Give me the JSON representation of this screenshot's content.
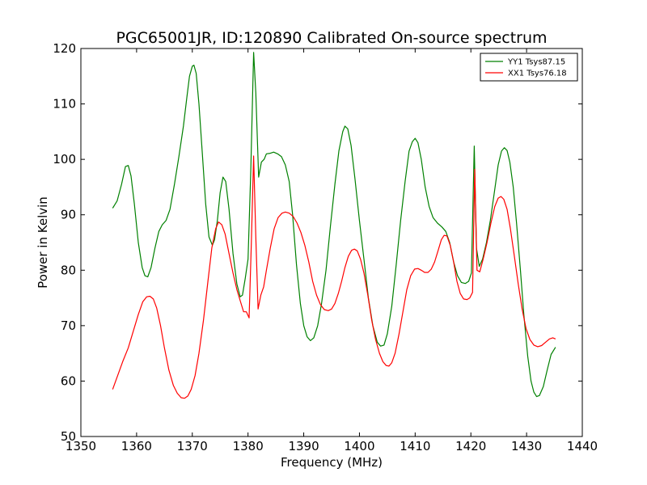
{
  "chart_data": {
    "type": "line",
    "title": "PGC65001JR, ID:120890 Calibrated On-source spectrum",
    "xlabel": "Frequency (MHz)",
    "ylabel": "Power in Kelvin",
    "xlim": [
      1350,
      1440
    ],
    "ylim": [
      50,
      120
    ],
    "xticks": [
      1350,
      1360,
      1370,
      1380,
      1390,
      1400,
      1410,
      1420,
      1430,
      1440
    ],
    "yticks": [
      50,
      60,
      70,
      80,
      90,
      100,
      110,
      120
    ],
    "grid": false,
    "legend_position": "top-right",
    "series": [
      {
        "name": "YY1 Tsys87.15",
        "color": "#008000",
        "points": [
          [
            1355.7,
            91.2
          ],
          [
            1356.5,
            92.5
          ],
          [
            1357.3,
            95.5
          ],
          [
            1358.0,
            98.7
          ],
          [
            1358.5,
            98.9
          ],
          [
            1359.0,
            97.0
          ],
          [
            1359.6,
            92.0
          ],
          [
            1360.3,
            85.0
          ],
          [
            1361.0,
            80.5
          ],
          [
            1361.5,
            79.0
          ],
          [
            1362.0,
            78.8
          ],
          [
            1362.6,
            80.5
          ],
          [
            1363.3,
            84.0
          ],
          [
            1364.0,
            87.0
          ],
          [
            1364.6,
            88.2
          ],
          [
            1365.3,
            89.0
          ],
          [
            1366.0,
            91.0
          ],
          [
            1366.8,
            95.5
          ],
          [
            1367.6,
            100.5
          ],
          [
            1368.4,
            106.0
          ],
          [
            1369.0,
            111.0
          ],
          [
            1369.5,
            115.0
          ],
          [
            1370.0,
            116.8
          ],
          [
            1370.3,
            117.0
          ],
          [
            1370.7,
            115.5
          ],
          [
            1371.2,
            110.0
          ],
          [
            1371.8,
            101.0
          ],
          [
            1372.4,
            92.0
          ],
          [
            1373.0,
            86.0
          ],
          [
            1373.6,
            84.5
          ],
          [
            1374.0,
            85.5
          ],
          [
            1374.5,
            89.0
          ],
          [
            1375.0,
            94.0
          ],
          [
            1375.5,
            96.8
          ],
          [
            1376.0,
            96.0
          ],
          [
            1376.6,
            91.0
          ],
          [
            1377.3,
            83.0
          ],
          [
            1378.0,
            77.5
          ],
          [
            1378.6,
            75.2
          ],
          [
            1379.0,
            75.5
          ],
          [
            1379.5,
            78.5
          ],
          [
            1380.0,
            82.0
          ],
          [
            1380.5,
            98.0
          ],
          [
            1381.0,
            119.3
          ],
          [
            1381.4,
            112.0
          ],
          [
            1381.9,
            96.8
          ],
          [
            1382.4,
            99.5
          ],
          [
            1382.9,
            100.0
          ],
          [
            1383.3,
            101.0
          ],
          [
            1384.0,
            101.1
          ],
          [
            1384.6,
            101.3
          ],
          [
            1385.3,
            101.0
          ],
          [
            1386.0,
            100.5
          ],
          [
            1386.7,
            99.0
          ],
          [
            1387.4,
            96.0
          ],
          [
            1388.0,
            90.0
          ],
          [
            1388.7,
            81.0
          ],
          [
            1389.4,
            74.0
          ],
          [
            1390.0,
            70.0
          ],
          [
            1390.6,
            68.0
          ],
          [
            1391.2,
            67.3
          ],
          [
            1391.8,
            67.8
          ],
          [
            1392.5,
            70.0
          ],
          [
            1393.2,
            74.0
          ],
          [
            1394.0,
            80.0
          ],
          [
            1394.8,
            88.0
          ],
          [
            1395.6,
            95.5
          ],
          [
            1396.3,
            101.5
          ],
          [
            1397.0,
            105.0
          ],
          [
            1397.4,
            106.0
          ],
          [
            1397.9,
            105.5
          ],
          [
            1398.5,
            102.5
          ],
          [
            1399.2,
            96.5
          ],
          [
            1400.0,
            89.0
          ],
          [
            1400.8,
            82.0
          ],
          [
            1401.6,
            75.0
          ],
          [
            1402.4,
            70.0
          ],
          [
            1403.2,
            67.0
          ],
          [
            1403.8,
            66.3
          ],
          [
            1404.4,
            66.5
          ],
          [
            1405.0,
            68.5
          ],
          [
            1405.8,
            73.5
          ],
          [
            1406.6,
            81.0
          ],
          [
            1407.4,
            89.0
          ],
          [
            1408.2,
            96.0
          ],
          [
            1408.9,
            101.5
          ],
          [
            1409.5,
            103.2
          ],
          [
            1410.0,
            103.8
          ],
          [
            1410.5,
            103.0
          ],
          [
            1411.1,
            100.0
          ],
          [
            1411.8,
            95.0
          ],
          [
            1412.5,
            91.5
          ],
          [
            1413.2,
            89.5
          ],
          [
            1414.0,
            88.5
          ],
          [
            1414.8,
            87.8
          ],
          [
            1415.5,
            87.0
          ],
          [
            1416.2,
            85.0
          ],
          [
            1416.9,
            81.5
          ],
          [
            1417.6,
            79.0
          ],
          [
            1418.3,
            77.8
          ],
          [
            1419.0,
            77.6
          ],
          [
            1419.6,
            78.0
          ],
          [
            1420.1,
            79.5
          ],
          [
            1420.6,
            102.4
          ],
          [
            1421.0,
            84.0
          ],
          [
            1421.5,
            80.7
          ],
          [
            1422.1,
            82.0
          ],
          [
            1422.8,
            85.0
          ],
          [
            1423.5,
            89.0
          ],
          [
            1424.2,
            94.0
          ],
          [
            1424.9,
            99.0
          ],
          [
            1425.5,
            101.5
          ],
          [
            1426.0,
            102.1
          ],
          [
            1426.5,
            101.6
          ],
          [
            1427.0,
            99.5
          ],
          [
            1427.6,
            95.0
          ],
          [
            1428.2,
            88.5
          ],
          [
            1428.9,
            80.0
          ],
          [
            1429.5,
            72.0
          ],
          [
            1430.2,
            64.5
          ],
          [
            1430.8,
            60.0
          ],
          [
            1431.3,
            58.0
          ],
          [
            1431.8,
            57.2
          ],
          [
            1432.3,
            57.4
          ],
          [
            1433.0,
            59.0
          ],
          [
            1433.7,
            62.0
          ],
          [
            1434.4,
            64.8
          ],
          [
            1435.2,
            66.1
          ]
        ]
      },
      {
        "name": "XX1 Tsys76.18",
        "color": "#ff0000",
        "points": [
          [
            1355.7,
            58.5
          ],
          [
            1356.6,
            61.0
          ],
          [
            1357.5,
            63.5
          ],
          [
            1358.5,
            66.0
          ],
          [
            1359.4,
            69.0
          ],
          [
            1360.3,
            72.0
          ],
          [
            1361.1,
            74.3
          ],
          [
            1361.8,
            75.2
          ],
          [
            1362.4,
            75.3
          ],
          [
            1363.0,
            74.8
          ],
          [
            1363.6,
            73.2
          ],
          [
            1364.3,
            70.0
          ],
          [
            1365.0,
            66.0
          ],
          [
            1365.8,
            62.0
          ],
          [
            1366.6,
            59.2
          ],
          [
            1367.3,
            57.8
          ],
          [
            1368.0,
            57.0
          ],
          [
            1368.6,
            56.9
          ],
          [
            1369.2,
            57.3
          ],
          [
            1369.8,
            58.5
          ],
          [
            1370.5,
            61.0
          ],
          [
            1371.2,
            65.0
          ],
          [
            1372.0,
            71.0
          ],
          [
            1372.8,
            78.0
          ],
          [
            1373.5,
            84.0
          ],
          [
            1374.2,
            87.5
          ],
          [
            1374.7,
            88.7
          ],
          [
            1375.3,
            88.2
          ],
          [
            1375.9,
            86.5
          ],
          [
            1376.6,
            83.0
          ],
          [
            1377.3,
            79.5
          ],
          [
            1378.0,
            76.5
          ],
          [
            1378.6,
            74.5
          ],
          [
            1379.2,
            72.5
          ],
          [
            1379.7,
            72.5
          ],
          [
            1380.2,
            71.4
          ],
          [
            1380.6,
            85.0
          ],
          [
            1381.0,
            100.6
          ],
          [
            1381.4,
            86.0
          ],
          [
            1381.8,
            73.0
          ],
          [
            1382.3,
            75.5
          ],
          [
            1382.8,
            77.0
          ],
          [
            1383.3,
            80.0
          ],
          [
            1384.0,
            84.0
          ],
          [
            1384.7,
            87.5
          ],
          [
            1385.4,
            89.5
          ],
          [
            1386.1,
            90.3
          ],
          [
            1386.7,
            90.5
          ],
          [
            1387.4,
            90.3
          ],
          [
            1388.1,
            89.7
          ],
          [
            1388.8,
            88.5
          ],
          [
            1389.5,
            86.8
          ],
          [
            1390.2,
            84.5
          ],
          [
            1390.9,
            81.5
          ],
          [
            1391.6,
            78.0
          ],
          [
            1392.3,
            75.5
          ],
          [
            1393.0,
            73.8
          ],
          [
            1393.7,
            72.9
          ],
          [
            1394.4,
            72.7
          ],
          [
            1395.0,
            73.0
          ],
          [
            1395.6,
            74.0
          ],
          [
            1396.2,
            75.8
          ],
          [
            1396.8,
            78.0
          ],
          [
            1397.4,
            80.5
          ],
          [
            1398.0,
            82.5
          ],
          [
            1398.6,
            83.6
          ],
          [
            1399.1,
            83.8
          ],
          [
            1399.6,
            83.5
          ],
          [
            1400.2,
            82.0
          ],
          [
            1400.8,
            79.5
          ],
          [
            1401.5,
            75.5
          ],
          [
            1402.2,
            71.0
          ],
          [
            1402.9,
            67.5
          ],
          [
            1403.6,
            65.0
          ],
          [
            1404.2,
            63.5
          ],
          [
            1404.8,
            62.8
          ],
          [
            1405.3,
            62.7
          ],
          [
            1405.8,
            63.3
          ],
          [
            1406.4,
            65.0
          ],
          [
            1407.1,
            68.5
          ],
          [
            1407.8,
            72.5
          ],
          [
            1408.5,
            76.5
          ],
          [
            1409.2,
            79.0
          ],
          [
            1409.9,
            80.2
          ],
          [
            1410.5,
            80.3
          ],
          [
            1411.1,
            80.0
          ],
          [
            1411.7,
            79.6
          ],
          [
            1412.3,
            79.6
          ],
          [
            1412.9,
            80.2
          ],
          [
            1413.5,
            81.5
          ],
          [
            1414.1,
            83.5
          ],
          [
            1414.7,
            85.5
          ],
          [
            1415.2,
            86.3
          ],
          [
            1415.7,
            86.2
          ],
          [
            1416.3,
            84.5
          ],
          [
            1416.9,
            81.5
          ],
          [
            1417.5,
            78.0
          ],
          [
            1418.1,
            75.8
          ],
          [
            1418.7,
            74.8
          ],
          [
            1419.3,
            74.7
          ],
          [
            1419.8,
            75.0
          ],
          [
            1420.3,
            76.0
          ],
          [
            1420.7,
            98.2
          ],
          [
            1421.1,
            80.0
          ],
          [
            1421.6,
            79.7
          ],
          [
            1422.2,
            82.0
          ],
          [
            1422.9,
            85.0
          ],
          [
            1423.6,
            88.5
          ],
          [
            1424.3,
            91.5
          ],
          [
            1424.9,
            93.0
          ],
          [
            1425.4,
            93.3
          ],
          [
            1425.9,
            92.8
          ],
          [
            1426.5,
            91.0
          ],
          [
            1427.1,
            87.5
          ],
          [
            1427.8,
            82.5
          ],
          [
            1428.5,
            77.5
          ],
          [
            1429.2,
            73.0
          ],
          [
            1429.9,
            69.5
          ],
          [
            1430.6,
            67.5
          ],
          [
            1431.3,
            66.5
          ],
          [
            1432.0,
            66.2
          ],
          [
            1432.7,
            66.4
          ],
          [
            1433.4,
            67.0
          ],
          [
            1434.1,
            67.6
          ],
          [
            1434.7,
            67.8
          ],
          [
            1435.2,
            67.6
          ]
        ]
      }
    ]
  }
}
